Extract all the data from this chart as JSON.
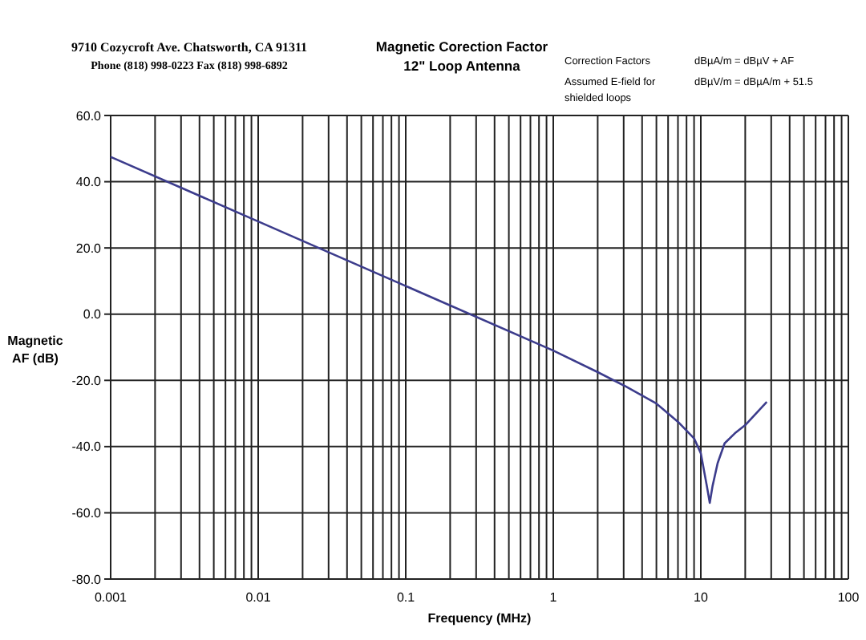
{
  "chart_data": {
    "type": "line",
    "title": "Magnetic Corection Factor",
    "subtitle": "12\" Loop Antenna",
    "xlabel": "Frequency (MHz)",
    "ylabel": "Magnetic AF (dB)",
    "annotations": [
      "9710 Cozycroft Ave. Chatsworth, CA 91311",
      "Phone (818) 998-0223 Fax (818) 998-6892",
      "Correction Factors",
      "dBµA/m = dBµV + AF",
      "Assumed E-field for shielded loops",
      "dBµV/m = dBµA/m + 51.5"
    ],
    "log": "x",
    "grid": true,
    "xlim": [
      0.001,
      100
    ],
    "xticks": [
      0.001,
      0.01,
      0.1,
      1,
      10,
      100
    ],
    "ylim": [
      -80,
      60
    ],
    "yticks": [
      {
        "value": -80,
        "label": "-80.0"
      },
      {
        "value": -60,
        "label": "-60.0"
      },
      {
        "value": -40,
        "label": "-40.0"
      },
      {
        "value": -20,
        "label": "-20.0"
      },
      {
        "value": 0,
        "label": "0.0"
      },
      {
        "value": 20,
        "label": "20.0"
      },
      {
        "value": 40,
        "label": "40.0"
      },
      {
        "value": 60,
        "label": "60.0"
      }
    ],
    "series": [
      {
        "color": "#3c3c8c",
        "x": [
          0.001,
          0.01,
          0.1,
          1,
          2,
          3,
          5,
          7,
          9,
          10,
          11,
          11.5,
          12,
          13,
          14.5,
          17,
          20,
          28
        ],
        "values": [
          47.5,
          28,
          8.5,
          -11,
          -17.5,
          -21.5,
          -27,
          -32.5,
          -37.5,
          -42,
          -52,
          -57,
          -52,
          -45,
          -39,
          -36,
          -33.5,
          -26.5
        ]
      }
    ]
  }
}
